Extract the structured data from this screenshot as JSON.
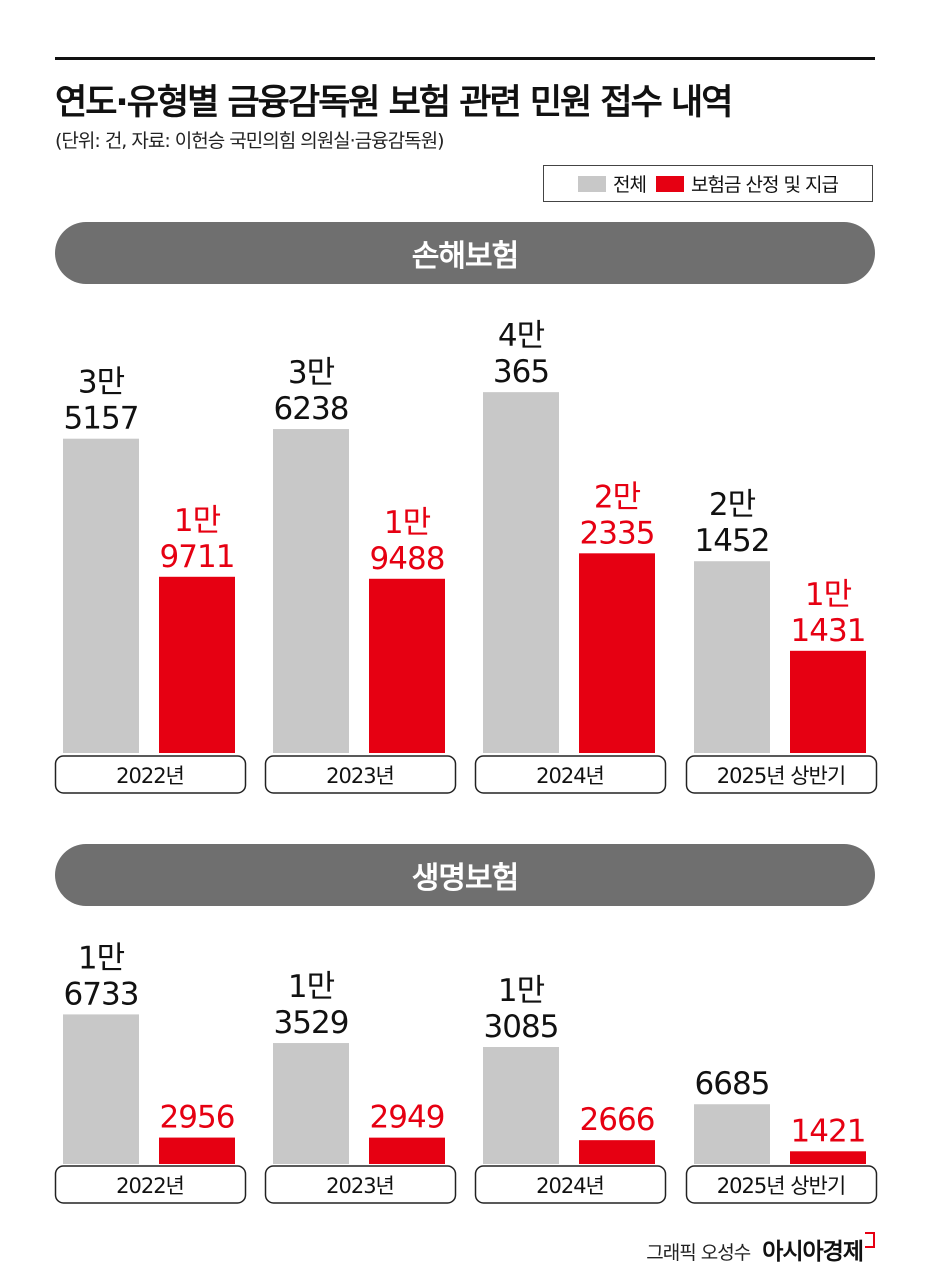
{
  "title": "연도·유형별 금융감독원 보험 관련 민원 접수 내역",
  "subtitle": "(단위: 건, 자료: 이헌승 국민의힘 의원실·금융감독원)",
  "legend": {
    "total": "전체",
    "claims": "보험금 산정 및 지급"
  },
  "colors": {
    "total": "#c8c8c8",
    "claims": "#e60012",
    "pill": "#6f6f6f"
  },
  "credit": {
    "text": "그래픽 오성수",
    "brand": "아시아경제"
  },
  "chart_data": [
    {
      "type": "bar",
      "title": "손해보험",
      "categories": [
        "2022년",
        "2023년",
        "2024년",
        "2025년 상반기"
      ],
      "series": [
        {
          "name": "전체",
          "values": [
            35157,
            36238,
            40365,
            21452
          ],
          "labels": [
            [
              "3만",
              "5157"
            ],
            [
              "3만",
              "6238"
            ],
            [
              "4만",
              "365"
            ],
            [
              "2만",
              "1452"
            ]
          ]
        },
        {
          "name": "보험금 산정 및 지급",
          "values": [
            19711,
            19488,
            22335,
            11431
          ],
          "labels": [
            [
              "1만",
              "9711"
            ],
            [
              "1만",
              "9488"
            ],
            [
              "2만",
              "2335"
            ],
            [
              "1만",
              "1431"
            ]
          ]
        }
      ]
    },
    {
      "type": "bar",
      "title": "생명보험",
      "categories": [
        "2022년",
        "2023년",
        "2024년",
        "2025년 상반기"
      ],
      "series": [
        {
          "name": "전체",
          "values": [
            16733,
            13529,
            13085,
            6685
          ],
          "labels": [
            [
              "1만",
              "6733"
            ],
            [
              "1만",
              "3529"
            ],
            [
              "1만",
              "3085"
            ],
            [
              "6685"
            ]
          ]
        },
        {
          "name": "보험금 산정 및 지급",
          "values": [
            2956,
            2949,
            2666,
            1421
          ],
          "labels": [
            [
              "2956"
            ],
            [
              "2949"
            ],
            [
              "2666"
            ],
            [
              "1421"
            ]
          ]
        }
      ]
    }
  ]
}
